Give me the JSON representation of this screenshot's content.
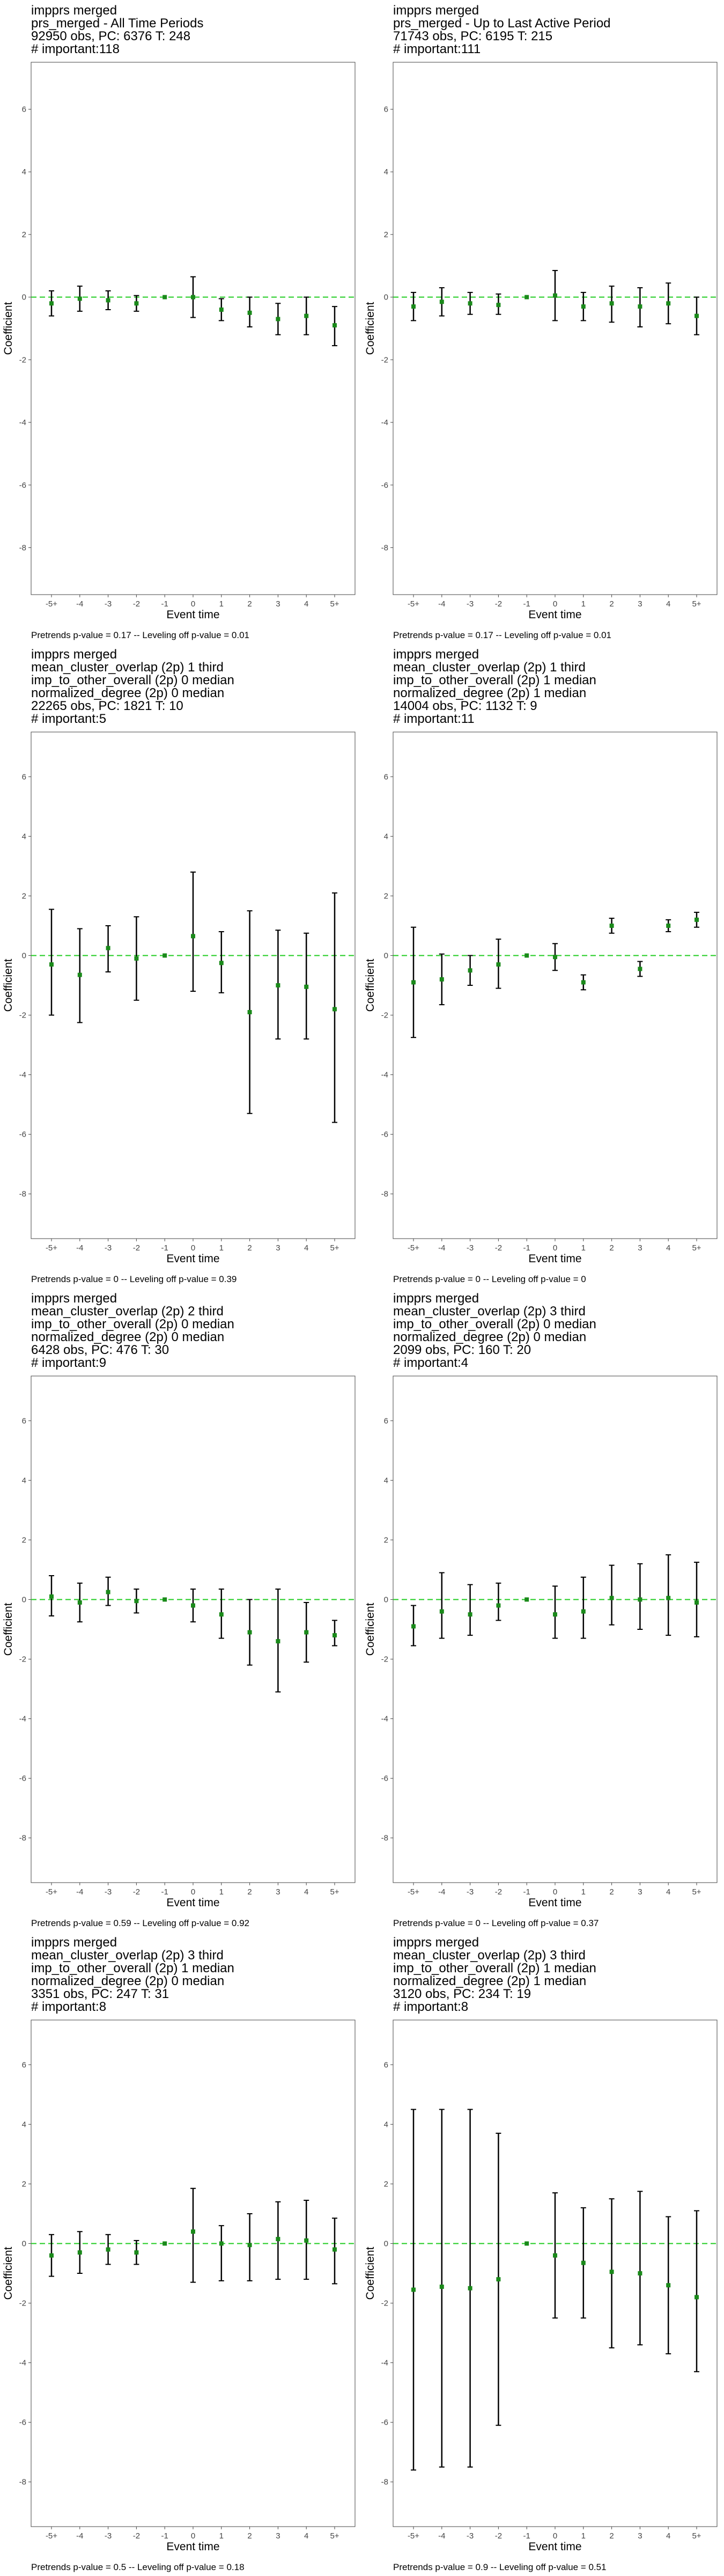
{
  "chart_data": [
    {
      "type": "errorbar",
      "header": [
        "impprs merged",
        "prs_merged - All Time Periods",
        "92950 obs, PC: 6376 T: 248",
        "# important:118"
      ],
      "xlabel": "Event time",
      "ylabel": "Coefficient",
      "footer": "Pretrends p-value = 0.17 -- Leveling off p-value = 0.01",
      "categories": [
        "-5+",
        "-4",
        "-3",
        "-2",
        "-1",
        "0",
        "1",
        "2",
        "3",
        "4",
        "5+"
      ],
      "ylim": [
        -9.5,
        7.5
      ],
      "yticks": [
        -8,
        -6,
        -4,
        -2,
        0,
        2,
        4,
        6
      ],
      "values": [
        -0.2,
        -0.05,
        -0.1,
        -0.2,
        0,
        0,
        -0.4,
        -0.5,
        -0.7,
        -0.6,
        -0.9
      ],
      "ci_low": [
        -0.6,
        -0.45,
        -0.4,
        -0.45,
        0,
        -0.65,
        -0.75,
        -0.95,
        -1.2,
        -1.2,
        -1.55
      ],
      "ci_high": [
        0.2,
        0.35,
        0.2,
        0.05,
        0,
        0.65,
        -0.05,
        0.0,
        -0.2,
        0,
        -0.3
      ],
      "reference_line": 0,
      "colors": {
        "point": "#1a8a1a",
        "bar": "#000000",
        "reference": "#22cc22"
      }
    },
    {
      "type": "errorbar",
      "header": [
        "impprs merged",
        "prs_merged - Up to Last Active Period",
        "71743 obs, PC: 6195 T: 215",
        "# important:111"
      ],
      "xlabel": "Event time",
      "ylabel": "Coefficient",
      "footer": "Pretrends p-value = 0.17 -- Leveling off p-value = 0.01",
      "categories": [
        "-5+",
        "-4",
        "-3",
        "-2",
        "-1",
        "0",
        "1",
        "2",
        "3",
        "4",
        "5+"
      ],
      "ylim": [
        -9.5,
        7.5
      ],
      "yticks": [
        -8,
        -6,
        -4,
        -2,
        0,
        2,
        4,
        6
      ],
      "values": [
        -0.3,
        -0.15,
        -0.2,
        -0.25,
        0,
        0.05,
        -0.3,
        -0.2,
        -0.3,
        -0.2,
        -0.6
      ],
      "ci_low": [
        -0.75,
        -0.6,
        -0.55,
        -0.55,
        0,
        -0.75,
        -0.75,
        -0.8,
        -0.95,
        -0.85,
        -1.2
      ],
      "ci_high": [
        0.15,
        0.3,
        0.15,
        0.1,
        0,
        0.85,
        0.15,
        0.35,
        0.3,
        0.45,
        0.0
      ],
      "reference_line": 0,
      "colors": {
        "point": "#1a8a1a",
        "bar": "#000000",
        "reference": "#22cc22"
      }
    },
    {
      "type": "errorbar",
      "header": [
        "impprs merged",
        "mean_cluster_overlap (2p) 1 third",
        "imp_to_other_overall (2p) 0 median",
        "normalized_degree (2p) 0 median",
        "22265 obs, PC: 1821 T: 10",
        "# important:5"
      ],
      "xlabel": "Event time",
      "ylabel": "Coefficient",
      "footer": "Pretrends p-value = 0 -- Leveling off p-value = 0.39",
      "categories": [
        "-5+",
        "-4",
        "-3",
        "-2",
        "-1",
        "0",
        "1",
        "2",
        "3",
        "4",
        "5+"
      ],
      "ylim": [
        -9.5,
        7.5
      ],
      "yticks": [
        -8,
        -6,
        -4,
        -2,
        0,
        2,
        4,
        6
      ],
      "values": [
        -0.3,
        -0.65,
        0.25,
        -0.1,
        0,
        0.65,
        -0.25,
        -1.9,
        -1.0,
        -1.05,
        -1.8
      ],
      "ci_low": [
        -2.0,
        -2.25,
        -0.55,
        -1.5,
        0,
        -1.2,
        -1.25,
        -5.3,
        -2.8,
        -2.8,
        -5.6
      ],
      "ci_high": [
        1.55,
        0.9,
        1.0,
        1.3,
        0,
        2.8,
        0.8,
        1.5,
        0.85,
        0.75,
        2.1
      ],
      "reference_line": 0,
      "colors": {
        "point": "#1a8a1a",
        "bar": "#000000",
        "reference": "#22cc22"
      }
    },
    {
      "type": "errorbar",
      "header": [
        "impprs merged",
        "mean_cluster_overlap (2p) 1 third",
        "imp_to_other_overall (2p) 1 median",
        "normalized_degree (2p) 1 median",
        "14004 obs, PC: 1132 T: 9",
        "# important:11"
      ],
      "xlabel": "Event time",
      "ylabel": "Coefficient",
      "footer": "Pretrends p-value = 0 -- Leveling off p-value = 0",
      "categories": [
        "-5+",
        "-4",
        "-3",
        "-2",
        "-1",
        "0",
        "1",
        "2",
        "3",
        "4",
        "5+"
      ],
      "ylim": [
        -9.5,
        7.5
      ],
      "yticks": [
        -8,
        -6,
        -4,
        -2,
        0,
        2,
        4,
        6
      ],
      "values": [
        -0.9,
        -0.8,
        -0.5,
        -0.3,
        0,
        -0.05,
        -0.9,
        1.0,
        -0.45,
        1.0,
        1.2
      ],
      "ci_low": [
        -2.75,
        -1.65,
        -1.0,
        -1.1,
        0,
        -0.5,
        -1.15,
        0.75,
        -0.7,
        0.8,
        0.95
      ],
      "ci_high": [
        0.95,
        0.05,
        0.0,
        0.55,
        0,
        0.4,
        -0.65,
        1.25,
        -0.2,
        1.2,
        1.45
      ],
      "reference_line": 0,
      "colors": {
        "point": "#1a8a1a",
        "bar": "#000000",
        "reference": "#22cc22"
      }
    },
    {
      "type": "errorbar",
      "header": [
        "impprs merged",
        "mean_cluster_overlap (2p) 2 third",
        "imp_to_other_overall (2p) 0 median",
        "normalized_degree (2p) 0 median",
        "6428 obs, PC: 476 T: 30",
        "# important:9"
      ],
      "xlabel": "Event time",
      "ylabel": "Coefficient",
      "footer": "Pretrends p-value = 0.59 -- Leveling off p-value = 0.92",
      "categories": [
        "-5+",
        "-4",
        "-3",
        "-2",
        "-1",
        "0",
        "1",
        "2",
        "3",
        "4",
        "5+"
      ],
      "ylim": [
        -9.5,
        7.5
      ],
      "yticks": [
        -8,
        -6,
        -4,
        -2,
        0,
        2,
        4,
        6
      ],
      "values": [
        0.1,
        -0.1,
        0.25,
        -0.05,
        0,
        -0.2,
        -0.5,
        -1.1,
        -1.4,
        -1.1,
        -1.2
      ],
      "ci_low": [
        -0.55,
        -0.75,
        -0.2,
        -0.45,
        0,
        -0.75,
        -1.3,
        -2.2,
        -3.1,
        -2.1,
        -1.55
      ],
      "ci_high": [
        0.8,
        0.55,
        0.75,
        0.35,
        0,
        0.35,
        0.35,
        0.0,
        0.35,
        -0.1,
        -0.7
      ],
      "reference_line": 0,
      "colors": {
        "point": "#1a8a1a",
        "bar": "#000000",
        "reference": "#22cc22"
      }
    },
    {
      "type": "errorbar",
      "header": [
        "impprs merged",
        "mean_cluster_overlap (2p) 3 third",
        "imp_to_other_overall (2p) 0 median",
        "normalized_degree (2p) 0 median",
        "2099 obs, PC: 160 T: 20",
        "# important:4"
      ],
      "xlabel": "Event time",
      "ylabel": "Coefficient",
      "footer": "Pretrends p-value = 0 -- Leveling off p-value = 0.37",
      "categories": [
        "-5+",
        "-4",
        "-3",
        "-2",
        "-1",
        "0",
        "1",
        "2",
        "3",
        "4",
        "5+"
      ],
      "ylim": [
        -9.5,
        7.5
      ],
      "yticks": [
        -8,
        -6,
        -4,
        -2,
        0,
        2,
        4,
        6
      ],
      "values": [
        -0.9,
        -0.4,
        -0.5,
        -0.2,
        0,
        -0.5,
        -0.4,
        0.05,
        0.0,
        0.05,
        -0.1
      ],
      "ci_low": [
        -1.55,
        -1.3,
        -1.2,
        -0.7,
        0,
        -1.3,
        -1.3,
        -0.85,
        -1.0,
        -1.2,
        -1.25
      ],
      "ci_high": [
        -0.2,
        0.9,
        0.5,
        0.55,
        0,
        0.45,
        0.75,
        1.15,
        1.2,
        1.5,
        1.25
      ],
      "reference_line": 0,
      "colors": {
        "point": "#1a8a1a",
        "bar": "#000000",
        "reference": "#22cc22"
      }
    },
    {
      "type": "errorbar",
      "header": [
        "impprs merged",
        "mean_cluster_overlap (2p) 3 third",
        "imp_to_other_overall (2p) 1 median",
        "normalized_degree (2p) 0 median",
        "3351 obs, PC: 247 T: 31",
        "# important:8"
      ],
      "xlabel": "Event time",
      "ylabel": "Coefficient",
      "footer": "Pretrends p-value = 0.5 -- Leveling off p-value = 0.18",
      "categories": [
        "-5+",
        "-4",
        "-3",
        "-2",
        "-1",
        "0",
        "1",
        "2",
        "3",
        "4",
        "5+"
      ],
      "ylim": [
        -9.5,
        7.5
      ],
      "yticks": [
        -8,
        -6,
        -4,
        -2,
        0,
        2,
        4,
        6
      ],
      "values": [
        -0.4,
        -0.3,
        -0.2,
        -0.3,
        0,
        0.4,
        0.0,
        -0.05,
        0.15,
        0.1,
        -0.2
      ],
      "ci_low": [
        -1.1,
        -1.0,
        -0.7,
        -0.7,
        0,
        -1.3,
        -1.25,
        -1.25,
        -1.2,
        -1.2,
        -1.35
      ],
      "ci_high": [
        0.3,
        0.4,
        0.3,
        0.1,
        0,
        1.85,
        0.6,
        1.0,
        1.4,
        1.45,
        0.85
      ],
      "reference_line": 0,
      "colors": {
        "point": "#1a8a1a",
        "bar": "#000000",
        "reference": "#22cc22"
      }
    },
    {
      "type": "errorbar",
      "header": [
        "impprs merged",
        "mean_cluster_overlap (2p) 3 third",
        "imp_to_other_overall (2p) 1 median",
        "normalized_degree (2p) 1 median",
        "3120 obs, PC: 234 T: 19",
        "# important:8"
      ],
      "xlabel": "Event time",
      "ylabel": "Coefficient",
      "footer": "Pretrends p-value = 0.9 -- Leveling off p-value = 0.51",
      "categories": [
        "-5+",
        "-4",
        "-3",
        "-2",
        "-1",
        "0",
        "1",
        "2",
        "3",
        "4",
        "5+"
      ],
      "ylim": [
        -9.5,
        7.5
      ],
      "yticks": [
        -8,
        -6,
        -4,
        -2,
        0,
        2,
        4,
        6
      ],
      "values": [
        -1.55,
        -1.45,
        -1.5,
        -1.2,
        0,
        -0.4,
        -0.65,
        -0.95,
        -1.0,
        -1.4,
        -1.8
      ],
      "ci_low": [
        -7.6,
        -7.5,
        -7.5,
        -6.1,
        0,
        -2.5,
        -2.5,
        -3.5,
        -3.4,
        -3.7,
        -4.3
      ],
      "ci_high": [
        4.5,
        4.5,
        4.5,
        3.7,
        0,
        1.7,
        1.2,
        1.5,
        1.75,
        0.9,
        1.1
      ],
      "reference_line": 0,
      "colors": {
        "point": "#1a8a1a",
        "bar": "#000000",
        "reference": "#22cc22"
      }
    }
  ]
}
